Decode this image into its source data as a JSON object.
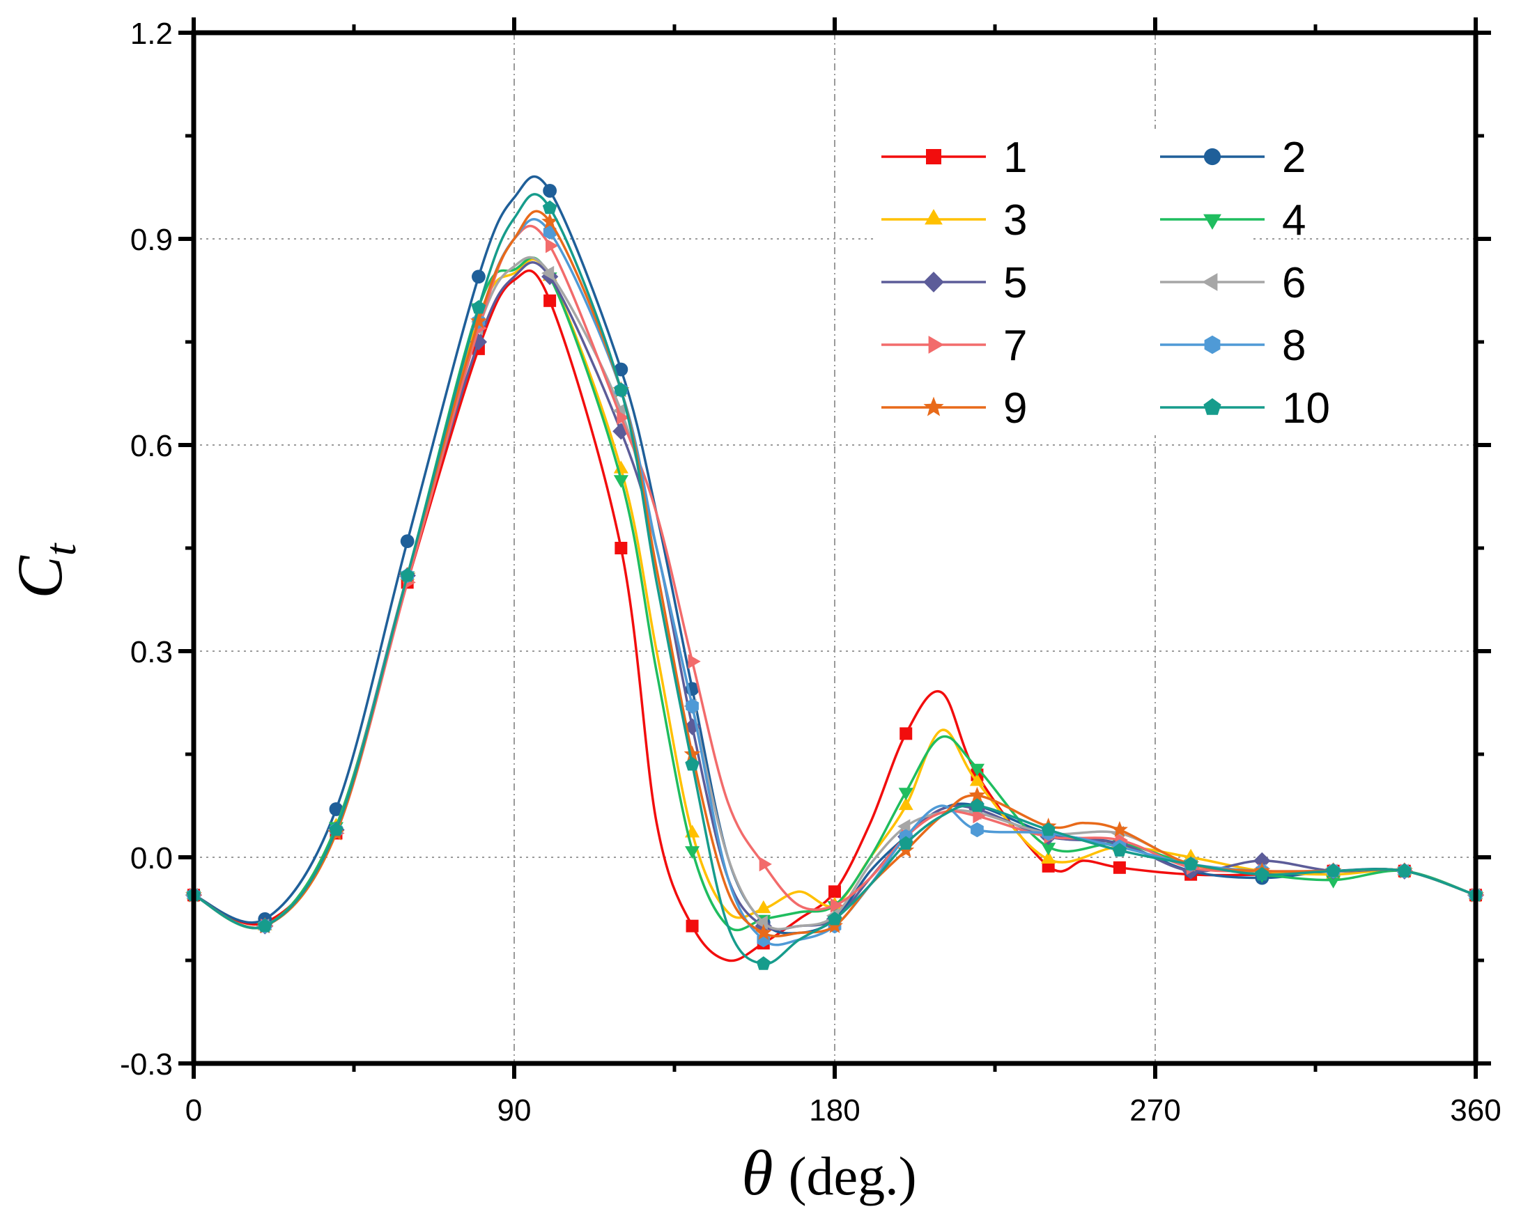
{
  "chart_data": {
    "type": "line",
    "xlabel": {
      "symbol": "θ",
      "unit": "(deg.)"
    },
    "ylabel": {
      "symbol": "C",
      "subscript": "t"
    },
    "xlim": [
      0,
      360
    ],
    "ylim": [
      -0.3,
      1.2
    ],
    "xticks": [
      0,
      90,
      180,
      270,
      360
    ],
    "xtick_labels": [
      "0",
      "90",
      "180",
      "270",
      "360"
    ],
    "yticks": [
      -0.3,
      0.0,
      0.3,
      0.6,
      0.9,
      1.2
    ],
    "ytick_labels": [
      "-0.3",
      "0.0",
      "0.3",
      "0.6",
      "0.9",
      "1.2"
    ],
    "grid": true,
    "legend_position": "top-right",
    "legend_columns": 2,
    "series": [
      {
        "name": "1",
        "color": "#f20d0d",
        "marker": "square",
        "x": [
          0,
          20,
          40,
          60,
          80,
          90,
          100,
          120,
          130,
          140,
          150,
          160,
          170,
          180,
          190,
          200,
          210,
          220,
          240,
          250,
          260,
          280,
          300,
          320,
          340,
          360
        ],
        "y": [
          -0.055,
          -0.095,
          0.035,
          0.4,
          0.74,
          0.84,
          0.81,
          0.45,
          0.05,
          -0.1,
          -0.15,
          -0.125,
          -0.09,
          -0.05,
          0.05,
          0.18,
          0.24,
          0.12,
          -0.013,
          -0.005,
          -0.015,
          -0.025,
          -0.025,
          -0.02,
          -0.02,
          -0.055
        ]
      },
      {
        "name": "2",
        "color": "#1f5f99",
        "marker": "circle",
        "x": [
          0,
          20,
          40,
          60,
          80,
          90,
          100,
          120,
          130,
          140,
          150,
          160,
          170,
          180,
          190,
          200,
          210,
          220,
          240,
          260,
          280,
          300,
          320,
          340,
          360
        ],
        "y": [
          -0.055,
          -0.09,
          0.07,
          0.46,
          0.845,
          0.96,
          0.97,
          0.71,
          0.5,
          0.245,
          0.0,
          -0.095,
          -0.11,
          -0.09,
          -0.02,
          0.03,
          0.07,
          0.075,
          0.035,
          0.02,
          -0.02,
          -0.03,
          -0.02,
          -0.02,
          -0.055
        ]
      },
      {
        "name": "3",
        "color": "#ffc000",
        "marker": "triangle-up",
        "x": [
          0,
          20,
          40,
          60,
          80,
          90,
          100,
          120,
          130,
          140,
          150,
          160,
          170,
          180,
          190,
          200,
          210,
          220,
          240,
          260,
          280,
          300,
          320,
          340,
          360
        ],
        "y": [
          -0.055,
          -0.1,
          0.045,
          0.41,
          0.785,
          0.85,
          0.845,
          0.565,
          0.3,
          0.035,
          -0.08,
          -0.075,
          -0.05,
          -0.07,
          0.0,
          0.075,
          0.185,
          0.11,
          -0.003,
          0.015,
          0.0,
          -0.02,
          -0.025,
          -0.02,
          -0.055
        ]
      },
      {
        "name": "4",
        "color": "#1fbd5f",
        "marker": "triangle-down",
        "x": [
          0,
          20,
          40,
          60,
          80,
          90,
          100,
          120,
          130,
          140,
          150,
          160,
          170,
          180,
          190,
          200,
          210,
          220,
          240,
          260,
          280,
          300,
          320,
          340,
          360
        ],
        "y": [
          -0.055,
          -0.1,
          0.045,
          0.41,
          0.8,
          0.855,
          0.845,
          0.55,
          0.27,
          0.01,
          -0.1,
          -0.09,
          -0.08,
          -0.07,
          0.0,
          0.095,
          0.175,
          0.13,
          0.015,
          0.02,
          -0.01,
          -0.025,
          -0.033,
          -0.02,
          -0.055
        ]
      },
      {
        "name": "5",
        "color": "#5c5c99",
        "marker": "diamond",
        "x": [
          0,
          20,
          40,
          60,
          80,
          90,
          100,
          120,
          130,
          140,
          150,
          160,
          170,
          180,
          190,
          200,
          210,
          220,
          240,
          260,
          280,
          300,
          320,
          340,
          360
        ],
        "y": [
          -0.055,
          -0.1,
          0.04,
          0.41,
          0.75,
          0.845,
          0.845,
          0.62,
          0.45,
          0.19,
          -0.03,
          -0.1,
          -0.1,
          -0.09,
          -0.03,
          0.03,
          0.07,
          0.07,
          0.03,
          0.02,
          -0.02,
          -0.005,
          -0.02,
          -0.02,
          -0.055
        ]
      },
      {
        "name": "6",
        "color": "#a6a6a6",
        "marker": "triangle-left",
        "x": [
          0,
          20,
          40,
          60,
          80,
          90,
          100,
          120,
          130,
          140,
          150,
          160,
          170,
          180,
          190,
          200,
          210,
          220,
          240,
          260,
          280,
          300,
          320,
          340,
          360
        ],
        "y": [
          -0.055,
          -0.1,
          0.04,
          0.41,
          0.77,
          0.86,
          0.85,
          0.65,
          0.45,
          0.22,
          0.0,
          -0.095,
          -0.1,
          -0.085,
          -0.01,
          0.045,
          0.065,
          0.065,
          0.035,
          0.035,
          -0.01,
          -0.02,
          -0.02,
          -0.02,
          -0.055
        ]
      },
      {
        "name": "7",
        "color": "#f26b6b",
        "marker": "triangle-right",
        "x": [
          0,
          20,
          40,
          60,
          80,
          90,
          100,
          120,
          130,
          140,
          150,
          160,
          170,
          180,
          190,
          200,
          210,
          220,
          240,
          260,
          280,
          300,
          320,
          340,
          360
        ],
        "y": [
          -0.055,
          -0.1,
          0.035,
          0.4,
          0.77,
          0.9,
          0.89,
          0.64,
          0.5,
          0.285,
          0.08,
          -0.01,
          -0.07,
          -0.07,
          -0.03,
          0.03,
          0.065,
          0.06,
          0.03,
          0.025,
          -0.015,
          -0.02,
          -0.02,
          -0.02,
          -0.055
        ]
      },
      {
        "name": "8",
        "color": "#4f9ad6",
        "marker": "hexagon",
        "x": [
          0,
          20,
          40,
          60,
          80,
          90,
          100,
          120,
          130,
          140,
          150,
          160,
          170,
          180,
          190,
          200,
          210,
          220,
          240,
          260,
          280,
          300,
          320,
          340,
          360
        ],
        "y": [
          -0.055,
          -0.1,
          0.04,
          0.41,
          0.78,
          0.9,
          0.91,
          0.68,
          0.45,
          0.22,
          -0.03,
          -0.12,
          -0.12,
          -0.1,
          -0.04,
          0.03,
          0.075,
          0.04,
          0.035,
          0.015,
          -0.01,
          -0.02,
          -0.02,
          -0.02,
          -0.055
        ]
      },
      {
        "name": "9",
        "color": "#e86a1a",
        "marker": "star",
        "x": [
          0,
          20,
          40,
          60,
          80,
          90,
          100,
          120,
          130,
          140,
          150,
          160,
          170,
          180,
          190,
          200,
          210,
          220,
          240,
          250,
          260,
          280,
          300,
          320,
          340,
          360
        ],
        "y": [
          -0.055,
          -0.1,
          0.035,
          0.41,
          0.78,
          0.9,
          0.925,
          0.68,
          0.42,
          0.15,
          -0.05,
          -0.11,
          -0.11,
          -0.1,
          -0.04,
          0.01,
          0.06,
          0.09,
          0.045,
          0.05,
          0.04,
          -0.01,
          -0.02,
          -0.02,
          -0.02,
          -0.055
        ]
      },
      {
        "name": "10",
        "color": "#169c8c",
        "marker": "pentagon",
        "x": [
          0,
          20,
          40,
          60,
          80,
          90,
          100,
          120,
          130,
          140,
          150,
          160,
          170,
          180,
          190,
          200,
          210,
          220,
          240,
          260,
          280,
          300,
          320,
          340,
          360
        ],
        "y": [
          -0.055,
          -0.1,
          0.04,
          0.41,
          0.8,
          0.93,
          0.945,
          0.68,
          0.4,
          0.135,
          -0.1,
          -0.155,
          -0.12,
          -0.09,
          -0.04,
          0.02,
          0.06,
          0.075,
          0.04,
          0.01,
          -0.01,
          -0.025,
          -0.02,
          -0.02,
          -0.055
        ]
      }
    ],
    "marker_x": {
      "1": [
        0,
        20,
        40,
        60,
        80,
        100,
        120,
        140,
        160,
        180,
        200,
        220,
        240,
        260,
        280,
        300,
        320,
        340,
        360
      ],
      "2": [
        0,
        20,
        40,
        60,
        80,
        100,
        120,
        140,
        160,
        180,
        200,
        220,
        240,
        260,
        280,
        300,
        320,
        340,
        360
      ],
      "3": [
        0,
        20,
        40,
        60,
        80,
        100,
        120,
        140,
        160,
        180,
        200,
        220,
        240,
        260,
        280,
        300,
        320,
        340,
        360
      ],
      "4": [
        0,
        20,
        40,
        60,
        80,
        100,
        120,
        140,
        160,
        180,
        200,
        220,
        240,
        260,
        280,
        300,
        320,
        340,
        360
      ],
      "5": [
        0,
        20,
        40,
        60,
        80,
        100,
        120,
        140,
        160,
        180,
        200,
        220,
        240,
        260,
        280,
        300,
        320,
        340,
        360
      ],
      "6": [
        0,
        20,
        40,
        60,
        80,
        100,
        120,
        140,
        160,
        180,
        200,
        220,
        240,
        260,
        280,
        300,
        320,
        340,
        360
      ],
      "7": [
        0,
        20,
        40,
        60,
        80,
        100,
        120,
        140,
        160,
        180,
        200,
        220,
        240,
        260,
        280,
        300,
        320,
        340,
        360
      ],
      "8": [
        0,
        20,
        40,
        60,
        80,
        100,
        120,
        140,
        160,
        180,
        200,
        220,
        240,
        260,
        280,
        300,
        320,
        340,
        360
      ],
      "9": [
        0,
        20,
        40,
        60,
        80,
        100,
        120,
        140,
        160,
        180,
        200,
        220,
        240,
        260,
        280,
        300,
        320,
        340,
        360
      ],
      "10": [
        0,
        20,
        40,
        60,
        80,
        100,
        120,
        140,
        160,
        180,
        200,
        220,
        240,
        260,
        280,
        300,
        320,
        340,
        360
      ]
    }
  }
}
